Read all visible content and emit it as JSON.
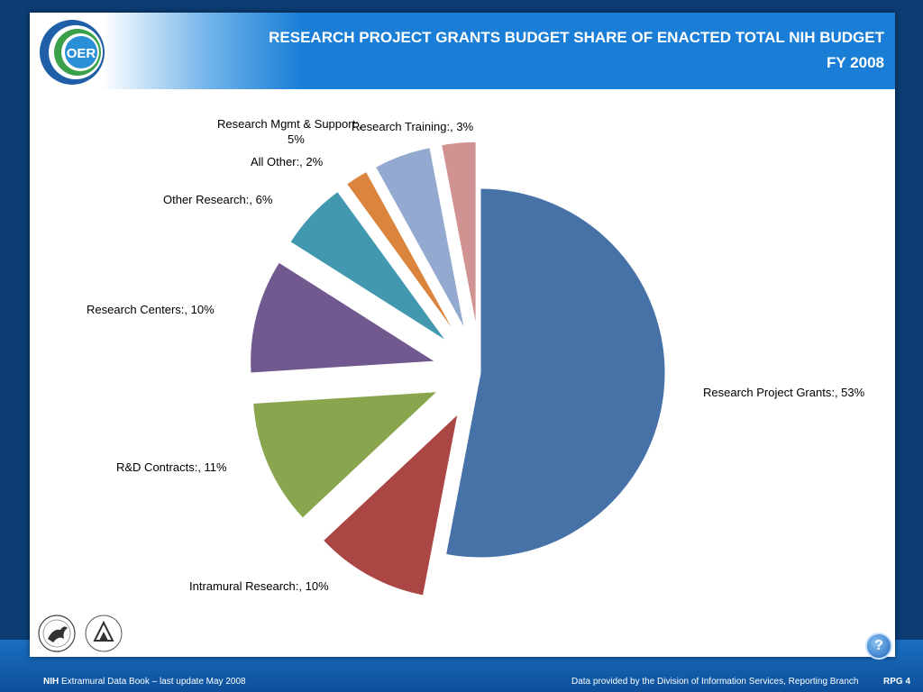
{
  "header": {
    "title_line1": "RESEARCH PROJECT GRANTS BUDGET SHARE OF ENACTED TOTAL NIH  BUDGET",
    "title_line2": "FY 2008",
    "logo_text": "OER"
  },
  "chart_data": {
    "type": "pie",
    "exploded": true,
    "slices": [
      {
        "label": "Research Project Grants:, 53%",
        "value": 53,
        "color": "#4672a8"
      },
      {
        "label": "Intramural Research:, 10%",
        "value": 10,
        "color": "#aa4643"
      },
      {
        "label": "R&D Contracts:, 11%",
        "value": 11,
        "color": "#89a54e"
      },
      {
        "label": "Research Centers:, 10%",
        "value": 10,
        "color": "#71588f"
      },
      {
        "label": "Other Research:, 6%",
        "value": 6,
        "color": "#4198af"
      },
      {
        "label": "All Other:, 2%",
        "value": 2,
        "color": "#db843d"
      },
      {
        "label_line1": "Research Mgmt & Support:,",
        "label_line2": "5%",
        "value": 5,
        "color": "#93a9cf"
      },
      {
        "label": "Research Training:, 3%",
        "value": 3,
        "color": "#d19392"
      }
    ]
  },
  "footer": {
    "left_bold": "NIH",
    "left_text": " Extramural Data Book – last update May 2008",
    "right_text": "Data provided by the Division of Information Services, Reporting Branch",
    "page": "RPG 4"
  },
  "icons": {
    "help": "question-mark-icon",
    "hhs": "hhs-eagle-logo",
    "nih": "nih-logo"
  }
}
